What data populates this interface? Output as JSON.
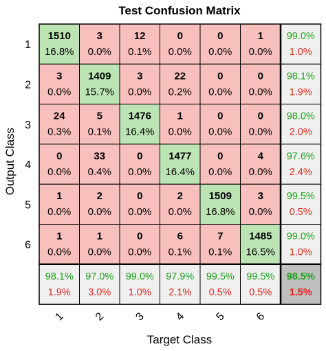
{
  "chart_data": {
    "type": "heatmap",
    "title": "Test Confusion Matrix",
    "xlabel": "Target Class",
    "ylabel": "Output Class",
    "row_labels": [
      "1",
      "2",
      "3",
      "4",
      "5",
      "6"
    ],
    "col_labels": [
      "1",
      "2",
      "3",
      "4",
      "5",
      "6"
    ],
    "counts": [
      [
        1510,
        3,
        12,
        0,
        0,
        1
      ],
      [
        3,
        1409,
        3,
        22,
        0,
        0
      ],
      [
        24,
        5,
        1476,
        1,
        0,
        0
      ],
      [
        0,
        33,
        0,
        1477,
        0,
        4
      ],
      [
        1,
        2,
        0,
        2,
        1509,
        3
      ],
      [
        1,
        1,
        0,
        6,
        7,
        1485
      ]
    ],
    "percents": [
      [
        "16.8%",
        "0.0%",
        "0.1%",
        "0.0%",
        "0.0%",
        "0.0%"
      ],
      [
        "0.0%",
        "15.7%",
        "0.0%",
        "0.2%",
        "0.0%",
        "0.0%"
      ],
      [
        "0.3%",
        "0.1%",
        "16.4%",
        "0.0%",
        "0.0%",
        "0.0%"
      ],
      [
        "0.0%",
        "0.4%",
        "0.0%",
        "16.4%",
        "0.0%",
        "0.0%"
      ],
      [
        "0.0%",
        "0.0%",
        "0.0%",
        "0.0%",
        "16.8%",
        "0.0%"
      ],
      [
        "0.0%",
        "0.0%",
        "0.0%",
        "0.1%",
        "0.1%",
        "16.5%"
      ]
    ],
    "row_summary": [
      [
        "99.0%",
        "1.0%"
      ],
      [
        "98.1%",
        "1.9%"
      ],
      [
        "98.0%",
        "2.0%"
      ],
      [
        "97.6%",
        "2.4%"
      ],
      [
        "99.5%",
        "0.5%"
      ],
      [
        "99.0%",
        "1.0%"
      ]
    ],
    "col_summary": [
      [
        "98.1%",
        "1.9%"
      ],
      [
        "97.0%",
        "3.0%"
      ],
      [
        "99.0%",
        "1.0%"
      ],
      [
        "97.9%",
        "2.1%"
      ],
      [
        "99.5%",
        "0.5%"
      ],
      [
        "99.5%",
        "0.5%"
      ]
    ],
    "overall": [
      "98.5%",
      "1.5%"
    ],
    "colors": {
      "correct_cell": "#bce4b5",
      "incorrect_cell": "#f8c0bc",
      "summary_cell": "#f0f0f0",
      "overall_cell": "#bfbfbf",
      "correct_text": "#1ea01e",
      "incorrect_text": "#e0281e"
    }
  }
}
